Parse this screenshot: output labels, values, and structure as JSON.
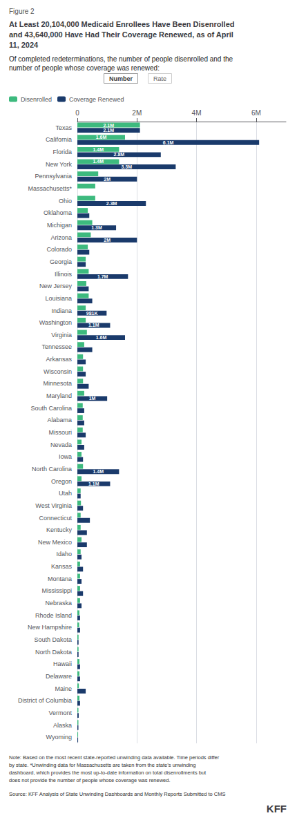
{
  "chart_data": {
    "type": "bar",
    "orientation": "horizontal",
    "figure_label": "Figure 2",
    "title": "At Least 20,104,000 Medicaid Enrollees Have Been Disenrolled\nand 43,640,000 Have Had Their Coverage Renewed, as of April\n11, 2024",
    "subtitle": "Of completed redeterminations, the number of people disenrolled and the\nnumber of people whose coverage was renewed:",
    "annotations": [
      "Number",
      "Rate",
      "KFF"
    ],
    "note": "Note: Based on the most recent state-reported unwinding data available. Time periods differ\nby state. *Unwinding data for Massachusetts are taken from the state’s unwinding\ndashboard, which provides the most up-to-date information on total disenrollments but\ndoes not provide the number of people whose coverage was renewed.",
    "source": "Source: KFF Analysis of State Unwinding Dashboards and Monthly Reports Submitted to CMS",
    "categories": [
      "Texas",
      "California",
      "Florida",
      "New York",
      "Pennsylvania",
      "Massachusetts*",
      "Ohio",
      "Oklahoma",
      "Michigan",
      "Arizona",
      "Colorado",
      "Georgia",
      "Illinois",
      "New Jersey",
      "Louisiana",
      "Indiana",
      "Washington",
      "Virginia",
      "Tennessee",
      "Arkansas",
      "Wisconsin",
      "Minnesota",
      "Maryland",
      "South Carolina",
      "Alabama",
      "Missouri",
      "Nevada",
      "Iowa",
      "North Carolina",
      "Oregon",
      "Utah",
      "West Virginia",
      "Connecticut",
      "Kentucky",
      "New Mexico",
      "Idaho",
      "Kansas",
      "Montana",
      "Mississippi",
      "Nebraska",
      "Rhode Island",
      "New Hampshire",
      "South Dakota",
      "North Dakota",
      "Hawaii",
      "Delaware",
      "Maine",
      "District of Columbia",
      "Vermont",
      "Alaska",
      "Wyoming"
    ],
    "series": [
      {
        "name": "Disenrolled",
        "color": "#3dba7e",
        "values": [
          2100000,
          1600000,
          1400000,
          1400000,
          700000,
          600000,
          600000,
          350000,
          500000,
          450000,
          350000,
          280000,
          380000,
          300000,
          380000,
          280000,
          280000,
          320000,
          230000,
          190000,
          190000,
          190000,
          230000,
          180000,
          180000,
          180000,
          140000,
          140000,
          190000,
          140000,
          110000,
          120000,
          110000,
          110000,
          140000,
          110000,
          90000,
          90000,
          90000,
          90000,
          70000,
          60000,
          40000,
          40000,
          70000,
          70000,
          50000,
          70000,
          35000,
          35000,
          25000
        ],
        "value_labels": [
          "2.1M",
          "1.6M",
          "1.4M",
          "1.4M",
          null,
          null,
          null,
          null,
          null,
          null,
          null,
          null,
          null,
          null,
          null,
          null,
          null,
          null,
          null,
          null,
          null,
          null,
          null,
          null,
          null,
          null,
          null,
          null,
          null,
          null,
          null,
          null,
          null,
          null,
          null,
          null,
          null,
          null,
          null,
          null,
          null,
          null,
          null,
          null,
          null,
          null,
          null,
          null,
          null,
          null,
          null
        ]
      },
      {
        "name": "Coverage Renewed",
        "color": "#1a3a6b",
        "values": [
          2100000,
          6100000,
          2800000,
          3300000,
          2000000,
          0,
          2300000,
          400000,
          1300000,
          2000000,
          400000,
          280000,
          1700000,
          380000,
          500000,
          981000,
          1100000,
          1600000,
          500000,
          280000,
          280000,
          380000,
          1000000,
          230000,
          230000,
          280000,
          230000,
          190000,
          1400000,
          1100000,
          110000,
          190000,
          420000,
          320000,
          320000,
          140000,
          190000,
          140000,
          190000,
          140000,
          90000,
          90000,
          40000,
          40000,
          90000,
          90000,
          280000,
          90000,
          45000,
          35000,
          25000
        ],
        "value_labels": [
          "2.1M",
          "6.1M",
          "2.8M",
          "3.3M",
          "2M",
          null,
          "2.3M",
          null,
          "1.3M",
          "2M",
          null,
          null,
          "1.7M",
          null,
          null,
          "981K",
          "1.1M",
          "1.6M",
          null,
          null,
          null,
          null,
          "1M",
          null,
          null,
          null,
          null,
          null,
          "1.4M",
          "1.1M",
          null,
          null,
          null,
          null,
          null,
          null,
          null,
          null,
          null,
          null,
          null,
          null,
          null,
          null,
          null,
          null,
          null,
          null,
          null,
          null,
          null
        ]
      }
    ],
    "xlim": [
      0,
      7000000
    ],
    "xticks": [
      0,
      {
        "value": 2000000,
        "label": "2M"
      },
      {
        "value": 4000000,
        "label": "4M"
      },
      {
        "value": 6000000,
        "label": "6M"
      }
    ],
    "grid": true,
    "legend": "top",
    "data_labels": true
  }
}
